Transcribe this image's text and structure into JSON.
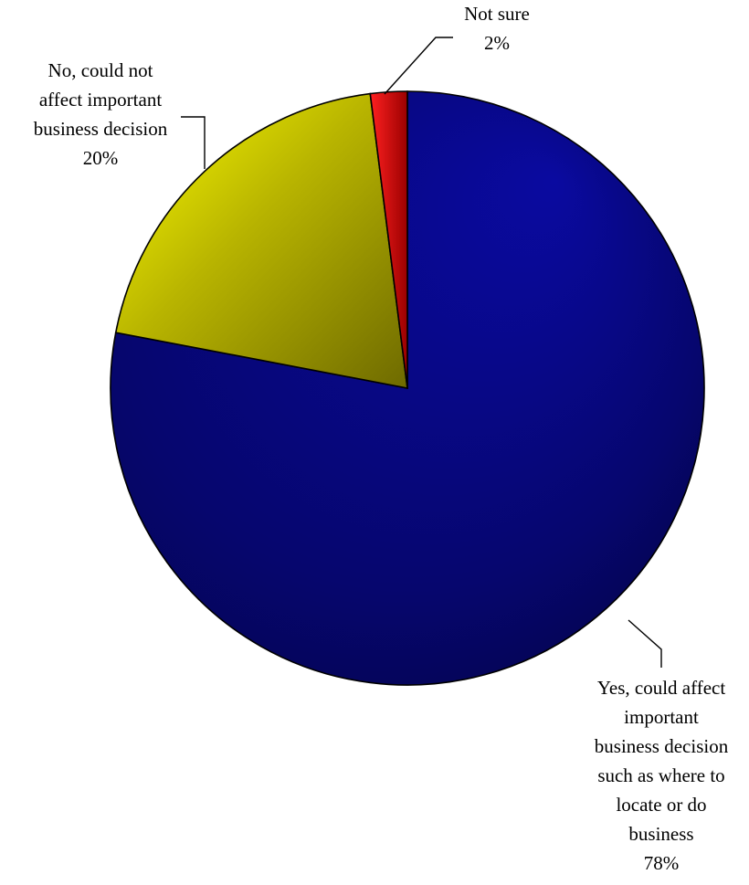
{
  "chart_data": {
    "type": "pie",
    "title": "",
    "slices": [
      {
        "label_lines": [
          "Yes, could affect",
          "important",
          "business decision",
          "such as where to",
          "locate or do",
          "business"
        ],
        "value": 78,
        "value_label": "78%",
        "color": "#000080"
      },
      {
        "label_lines": [
          "No, could not",
          "affect important",
          "business decision"
        ],
        "value": 20,
        "value_label": "20%",
        "color": "#b3b300"
      },
      {
        "label_lines": [
          "Not sure"
        ],
        "value": 2,
        "value_label": "2%",
        "color": "#e00000"
      }
    ],
    "start_angle_deg": 0,
    "direction": "clockwise",
    "legend": "none",
    "data_labels": "outside-with-leader-lines"
  }
}
